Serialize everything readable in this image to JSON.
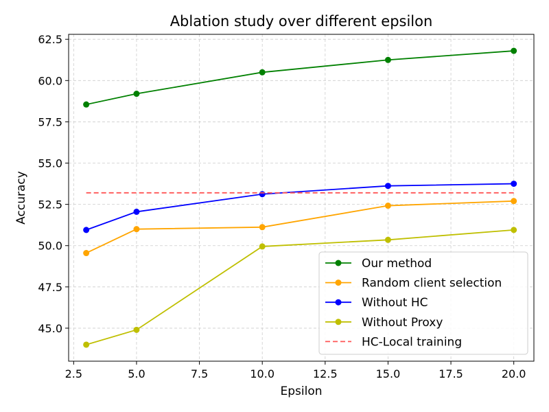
{
  "chart_data": {
    "type": "line",
    "title": "Ablation study over different epsilon",
    "xlabel": "Epsilon",
    "ylabel": "Accuracy",
    "xlim": [
      2.3,
      20.8
    ],
    "ylim": [
      43.0,
      62.8
    ],
    "xticks": [
      "2.5",
      "5.0",
      "7.5",
      "10.0",
      "12.5",
      "15.0",
      "17.5",
      "20.0"
    ],
    "yticks": [
      "45.0",
      "47.5",
      "50.0",
      "52.5",
      "55.0",
      "57.5",
      "60.0",
      "62.5"
    ],
    "grid": true,
    "legend_position": "lower-right",
    "x": [
      3,
      5,
      10,
      15,
      20
    ],
    "series": [
      {
        "name": "Our method",
        "color": "#008000",
        "style": "solid-marker",
        "values": [
          58.55,
          59.2,
          60.5,
          61.25,
          61.8
        ]
      },
      {
        "name": "Random client selection",
        "color": "#ffa500",
        "style": "solid-marker",
        "values": [
          49.55,
          51.0,
          51.12,
          52.42,
          52.7
        ]
      },
      {
        "name": "Without HC",
        "color": "#0000ff",
        "style": "solid-marker",
        "values": [
          50.95,
          52.05,
          53.12,
          53.62,
          53.75
        ]
      },
      {
        "name": "Without Proxy",
        "color": "#bfbf00",
        "style": "solid-marker",
        "values": [
          44.0,
          44.9,
          49.95,
          50.35,
          50.95
        ]
      },
      {
        "name": "HC-Local training",
        "color": "#ff5555",
        "style": "dashed",
        "values": [
          53.2,
          53.2,
          53.2,
          53.2,
          53.2
        ]
      }
    ]
  }
}
